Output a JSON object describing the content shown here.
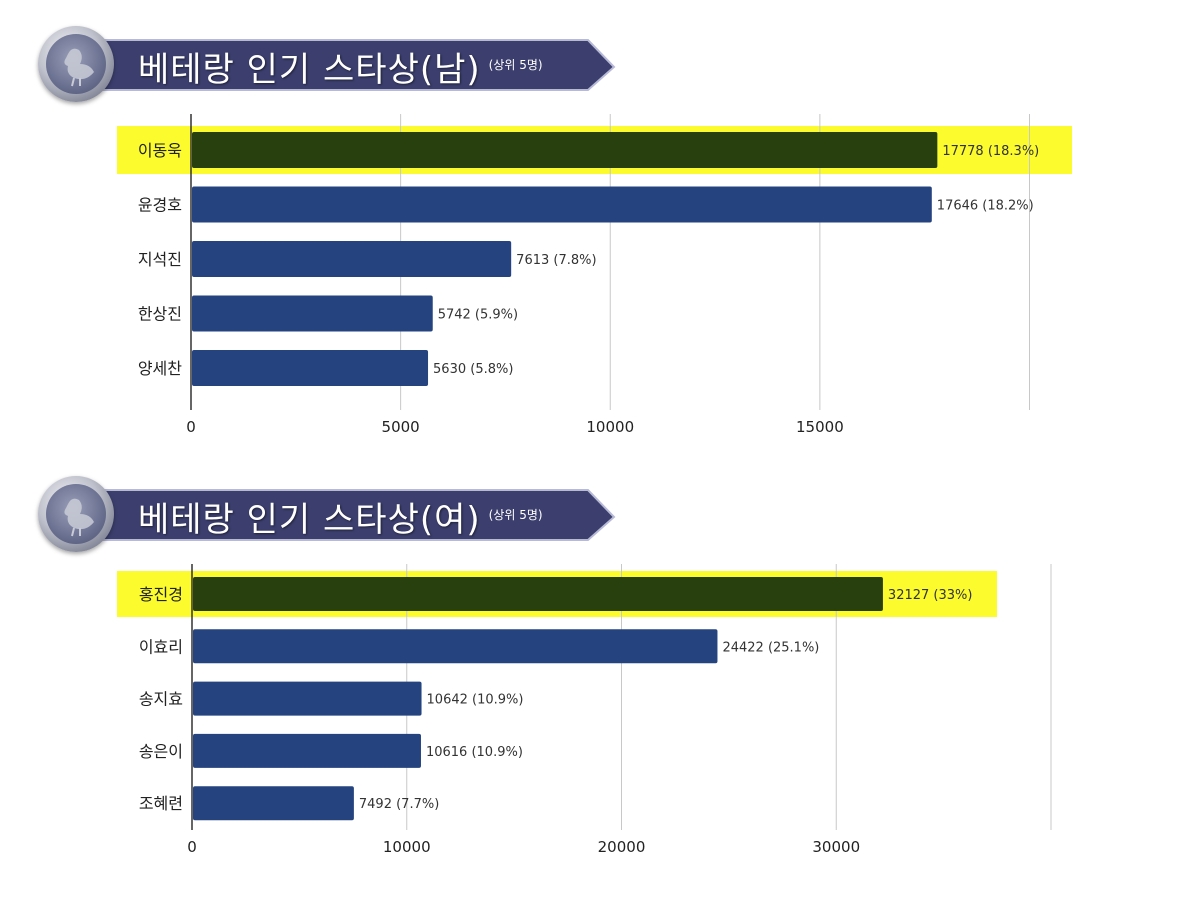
{
  "banners": [
    {
      "title": "베테랑 인기 스타상(남)",
      "subtitle": "(상위 5명)"
    },
    {
      "title": "베테랑 인기 스타상(여)",
      "subtitle": "(상위 5명)"
    }
  ],
  "colors": {
    "bar": "#25437f",
    "highlight_bar": "#27400e",
    "highlight_band": "#fbfb2e",
    "banner_ribbon": "#3c3f6e",
    "grid": "#c8c8c8"
  },
  "chart_data": [
    {
      "type": "bar",
      "orientation": "horizontal",
      "categories": [
        "이동욱",
        "윤경호",
        "지석진",
        "한상진",
        "양세찬"
      ],
      "values": [
        17778,
        17646,
        7613,
        5742,
        5630
      ],
      "data_labels": [
        "17778 (18.3%)",
        "17646 (18.2%)",
        "7613 (7.8%)",
        "5742 (5.9%)",
        "5630 (5.8%)"
      ],
      "xlim": [
        0,
        20000
      ],
      "ticks": [
        0,
        5000,
        10000,
        15000
      ],
      "tick_labels": [
        "0",
        "5000",
        "10000",
        "15000"
      ],
      "highlight_index": 0,
      "grid": true
    },
    {
      "type": "bar",
      "orientation": "horizontal",
      "categories": [
        "홍진경",
        "이효리",
        "송지효",
        "송은이",
        "조혜련"
      ],
      "values": [
        32127,
        24422,
        10642,
        10616,
        7492
      ],
      "data_labels": [
        "32127 (33%)",
        "24422 (25.1%)",
        "10642 (10.9%)",
        "10616 (10.9%)",
        "7492 (7.7%)"
      ],
      "xlim": [
        0,
        40000
      ],
      "ticks": [
        0,
        10000,
        20000,
        30000
      ],
      "tick_labels": [
        "0",
        "10000",
        "20000",
        "30000"
      ],
      "highlight_index": 0,
      "grid": true
    }
  ]
}
